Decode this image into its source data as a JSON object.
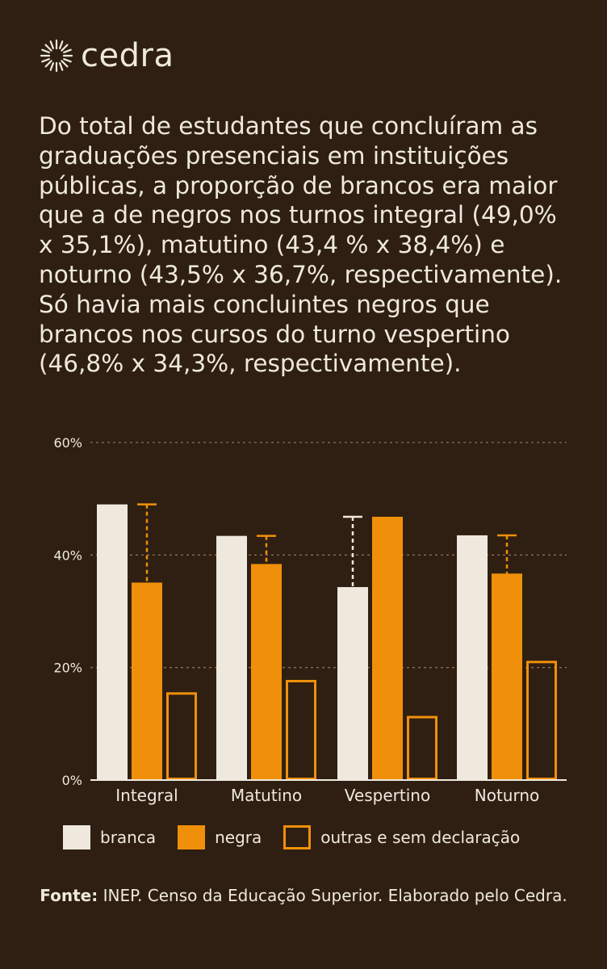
{
  "brand": {
    "name": "cedra",
    "logo_icon": "sun-burst-icon"
  },
  "headline": "Do total de estudantes que concluíram as graduações presenciais em instituições públicas, a proporção de brancos era maior que a de negros nos turnos integral (49,0% x 35,1%), matutino (43,4 % x 38,4%) e noturno (43,5% x 36,7%, respectivamente). Só havia mais concluintes negros que brancos nos cursos do turno vespertino (46,8% x 34,3%, respectivamente).",
  "colors": {
    "background": "#2f1f12",
    "branca": "#efe9dd",
    "negra": "#f0900a",
    "outras": "#f0900a"
  },
  "chart_data": {
    "type": "bar",
    "categories": [
      "Integral",
      "Matutino",
      "Vespertino",
      "Noturno"
    ],
    "series": [
      {
        "name": "branca",
        "values": [
          49.0,
          43.4,
          34.3,
          43.5
        ],
        "style": "filled",
        "color": "#efe9dd"
      },
      {
        "name": "negra",
        "values": [
          35.1,
          38.4,
          46.8,
          36.7
        ],
        "style": "filled",
        "color": "#f0900a"
      },
      {
        "name": "outras e sem declaração",
        "values": [
          15.6,
          17.8,
          11.4,
          21.2
        ],
        "style": "outline",
        "color": "#f0900a"
      }
    ],
    "gap_markers": "dashed line from lower to higher of branca/negra, colored like the lower bar",
    "y_ticks": [
      "0%",
      "20%",
      "40%",
      "60%"
    ],
    "y_tick_values": [
      0,
      20,
      40,
      60
    ],
    "ylim": [
      0,
      60
    ],
    "grid": "dotted horizontal",
    "legend_position": "bottom"
  },
  "legend": [
    {
      "label": "branca",
      "style": "filled",
      "color": "#efe9dd"
    },
    {
      "label": "negra",
      "style": "filled",
      "color": "#f0900a"
    },
    {
      "label": "outras e sem declaração",
      "style": "outline",
      "color": "#f0900a"
    }
  ],
  "source": {
    "label": "Fonte:",
    "text": " INEP. Censo da Educação Superior. Elaborado pelo Cedra."
  }
}
